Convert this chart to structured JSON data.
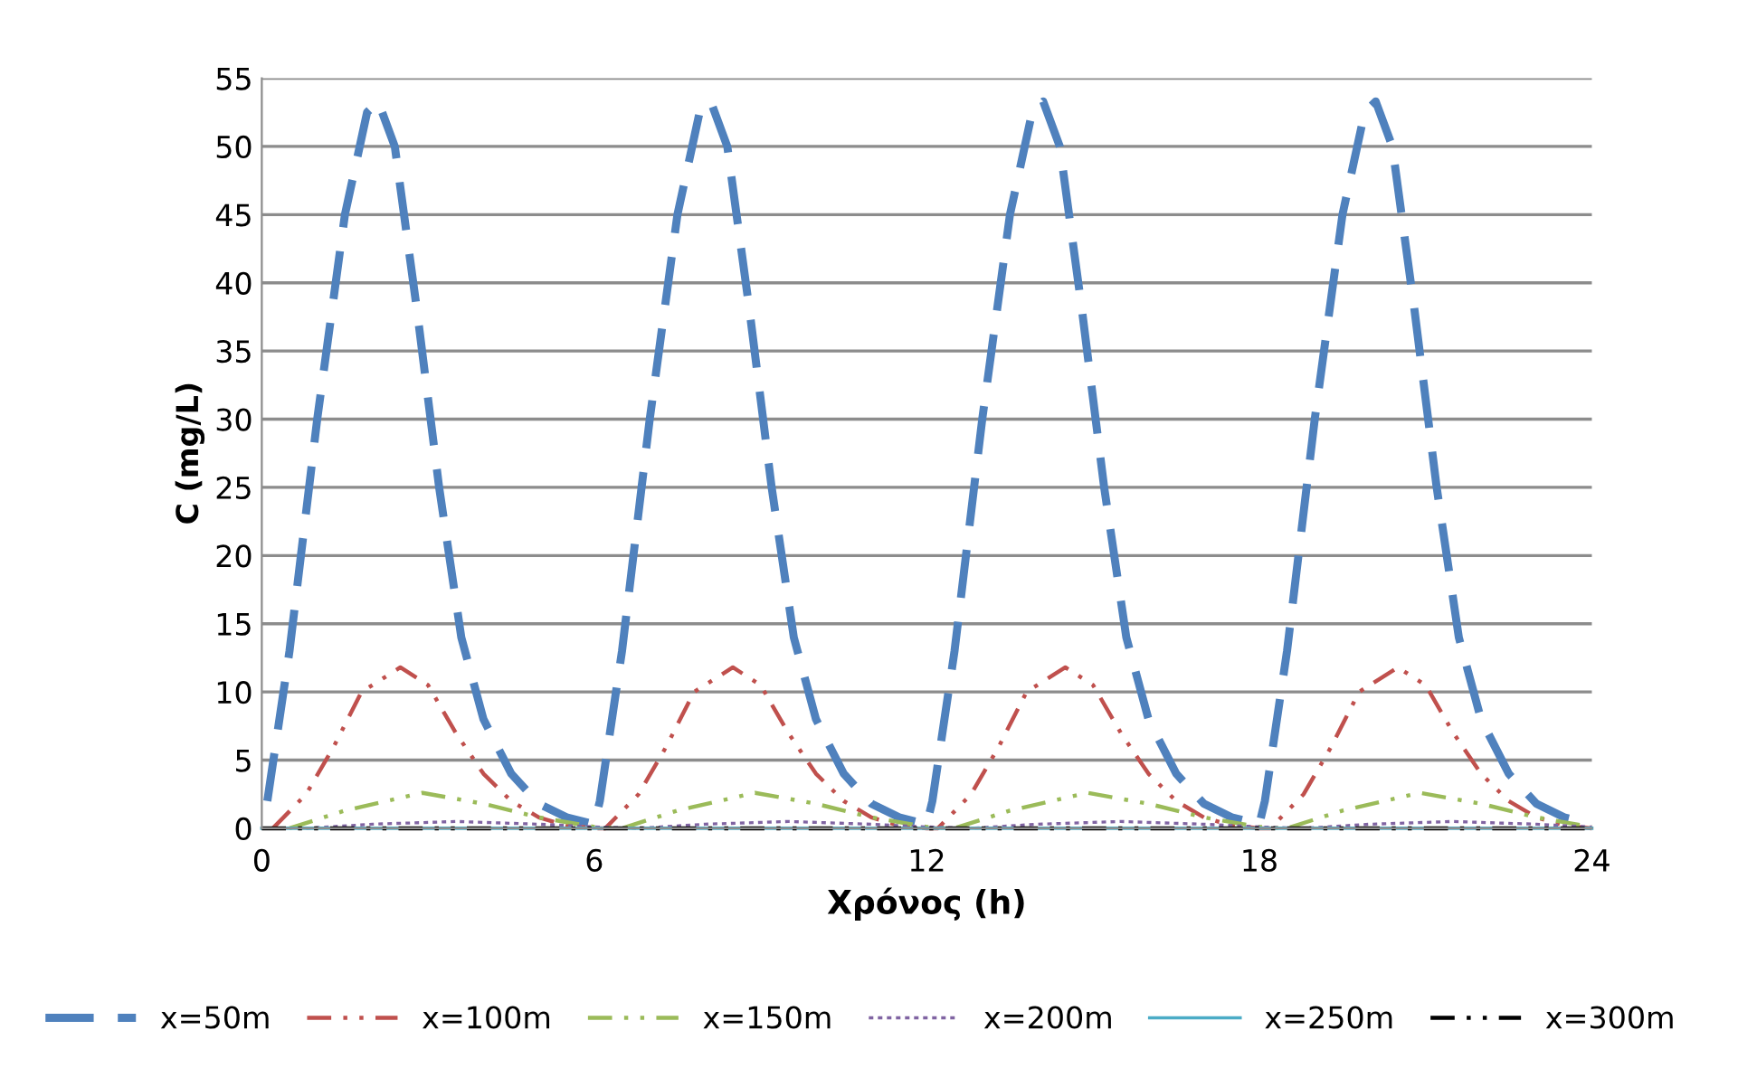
{
  "chart_data": {
    "type": "line",
    "xlabel": "Χρόνος (h)",
    "ylabel": "C (mg/L)",
    "xlim": [
      0,
      24
    ],
    "xticks": [
      0,
      6,
      12,
      18,
      24
    ],
    "ylim": [
      0,
      55
    ],
    "yticks": [
      0,
      5,
      10,
      15,
      20,
      25,
      30,
      35,
      40,
      45,
      50,
      55
    ],
    "grid": "y",
    "legend": "bottom",
    "marker": "none",
    "series": [
      {
        "name": "x=50m",
        "color": "#4f81bd",
        "line_style": "dashed",
        "x": [
          0.1,
          0.5,
          1,
          1.5,
          1.9,
          2.1,
          2.4,
          2.8,
          3.2,
          3.6,
          4,
          4.5,
          5,
          5.5,
          6,
          6.1,
          6.5,
          7,
          7.5,
          7.9,
          8.1,
          8.4,
          8.8,
          9.2,
          9.6,
          10,
          10.5,
          11,
          11.5,
          12,
          12.1,
          12.5,
          13,
          13.5,
          13.9,
          14.1,
          14.4,
          14.8,
          15.2,
          15.6,
          16,
          16.5,
          17,
          17.5,
          18,
          18.1,
          18.5,
          19,
          19.5,
          19.9,
          20.1,
          20.4,
          20.8,
          21.2,
          21.6,
          22,
          22.5,
          23,
          23.5,
          24
        ],
        "values": [
          2,
          13,
          30,
          45,
          52.5,
          53.3,
          50,
          38,
          25,
          14,
          8,
          4,
          1.8,
          0.8,
          0.3,
          2,
          13,
          30,
          45,
          52.5,
          53.3,
          50,
          38,
          25,
          14,
          8,
          4,
          1.8,
          0.8,
          0.3,
          2,
          13,
          30,
          45,
          52.5,
          53.3,
          50,
          38,
          25,
          14,
          8,
          4,
          1.8,
          0.8,
          0.3,
          2,
          13,
          30,
          45,
          52.5,
          53.3,
          50,
          38,
          25,
          14,
          8,
          4,
          1.8,
          0.8,
          0.3
        ]
      },
      {
        "name": "x=100m",
        "color": "#c0504d",
        "line_style": "dashdot",
        "x": [
          0.2,
          0.8,
          1.3,
          1.8,
          2.5,
          3,
          3.5,
          4,
          4.5,
          5,
          5.5,
          6,
          6.2,
          6.8,
          7.3,
          7.8,
          8.5,
          9,
          9.5,
          10,
          10.5,
          11,
          11.5,
          12,
          12.2,
          12.8,
          13.3,
          13.8,
          14.5,
          15,
          15.5,
          16,
          16.5,
          17,
          17.5,
          18,
          18.2,
          18.8,
          19.3,
          19.8,
          20.5,
          21,
          21.5,
          22,
          22.5,
          23,
          23.5,
          24
        ],
        "values": [
          0,
          2.5,
          6,
          10,
          11.8,
          10.5,
          7,
          4,
          2,
          0.8,
          0.2,
          0,
          0,
          2.5,
          6,
          10,
          11.8,
          10.5,
          7,
          4,
          2,
          0.8,
          0.2,
          0,
          0,
          2.5,
          6,
          10,
          11.8,
          10.5,
          7,
          4,
          2,
          0.8,
          0.2,
          0,
          0,
          2.5,
          6,
          10,
          11.8,
          10.5,
          7,
          4,
          2,
          0.8,
          0.2,
          0
        ]
      },
      {
        "name": "x=150m",
        "color": "#9bbb59",
        "line_style": "dashdot",
        "x": [
          0.5,
          1.5,
          2.9,
          4,
          5,
          6,
          6.5,
          7.5,
          8.9,
          10,
          11,
          12,
          12.5,
          13.5,
          14.9,
          16,
          17,
          18,
          18.5,
          19.5,
          20.9,
          22,
          23,
          24
        ],
        "values": [
          0,
          1.3,
          2.6,
          1.8,
          0.8,
          0.1,
          0,
          1.3,
          2.6,
          1.8,
          0.8,
          0.1,
          0,
          1.3,
          2.6,
          1.8,
          0.8,
          0.1,
          0,
          1.3,
          2.6,
          1.8,
          0.8,
          0.1
        ]
      },
      {
        "name": "x=200m",
        "color": "#8064a2",
        "line_style": "dotted",
        "x": [
          0.8,
          2,
          3.5,
          5,
          6,
          6.8,
          8,
          9.5,
          11,
          12,
          12.8,
          14,
          15.5,
          17,
          18,
          18.8,
          20,
          21.5,
          23,
          24
        ],
        "values": [
          0,
          0.3,
          0.5,
          0.3,
          0.1,
          0,
          0.3,
          0.5,
          0.3,
          0.1,
          0,
          0.3,
          0.5,
          0.3,
          0.1,
          0,
          0.3,
          0.5,
          0.3,
          0.1
        ]
      },
      {
        "name": "x=250m",
        "color": "#4bacc6",
        "line_style": "solid",
        "x": [
          0,
          6,
          12,
          18,
          24
        ],
        "values": [
          0,
          0,
          0,
          0,
          0
        ]
      },
      {
        "name": "x=300m",
        "color": "#000000",
        "line_style": "dashdot",
        "x": [
          0,
          6,
          12,
          18,
          24
        ],
        "values": [
          0,
          0,
          0,
          0,
          0
        ]
      }
    ]
  }
}
